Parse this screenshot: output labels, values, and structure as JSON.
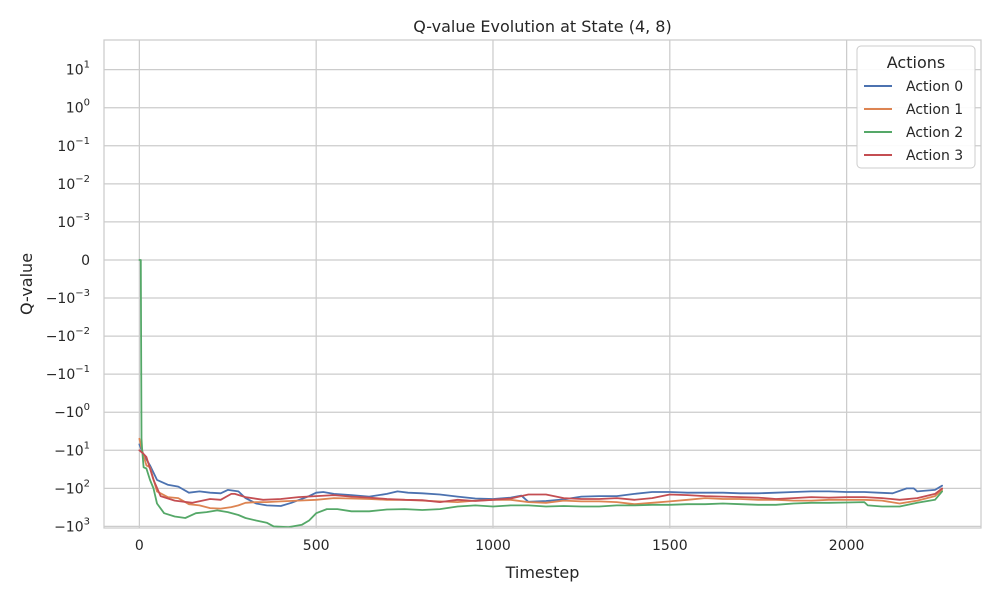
{
  "chart_data": {
    "type": "line",
    "title": "Q-value Evolution at State (4, 8)",
    "xlabel": "Timestep",
    "ylabel": "Q-value",
    "xlim": [
      -100,
      2380
    ],
    "x_ticks": [
      0,
      500,
      1000,
      1500,
      2000
    ],
    "y_scale": "symlog",
    "ylim": [
      -1100,
      60
    ],
    "y_ticks": [
      {
        "value": 10,
        "base": "10",
        "exp": "1"
      },
      {
        "value": 1,
        "base": "10",
        "exp": "0"
      },
      {
        "value": 0.1,
        "base": "10",
        "exp": "−1"
      },
      {
        "value": 0.01,
        "base": "10",
        "exp": "−2"
      },
      {
        "value": 0.001,
        "base": "10",
        "exp": "−3"
      },
      {
        "value": 0,
        "base": "0",
        "exp": ""
      },
      {
        "value": -0.001,
        "base": "−10",
        "exp": "−3"
      },
      {
        "value": -0.01,
        "base": "−10",
        "exp": "−2"
      },
      {
        "value": -0.1,
        "base": "−10",
        "exp": "−1"
      },
      {
        "value": -1,
        "base": "−10",
        "exp": "0"
      },
      {
        "value": -10,
        "base": "−10",
        "exp": "1"
      },
      {
        "value": -100,
        "base": "−10",
        "exp": "2"
      },
      {
        "value": -1000,
        "base": "−10",
        "exp": "3"
      }
    ],
    "grid": true,
    "legend_title": "Actions",
    "legend_position": "top-right",
    "series": [
      {
        "name": "Action 0",
        "color": "#4c72b0",
        "x": [
          0,
          10,
          30,
          50,
          80,
          110,
          140,
          170,
          200,
          230,
          250,
          280,
          300,
          330,
          360,
          400,
          430,
          480,
          500,
          520,
          550,
          600,
          650,
          700,
          730,
          760,
          800,
          850,
          900,
          950,
          1000,
          1050,
          1080,
          1100,
          1150,
          1200,
          1250,
          1300,
          1350,
          1400,
          1450,
          1500,
          1550,
          1600,
          1650,
          1700,
          1750,
          1800,
          1850,
          1900,
          1950,
          2000,
          2050,
          2090,
          2130,
          2170,
          2190,
          2200,
          2250,
          2270
        ],
        "y": [
          -7,
          -12,
          -25,
          -60,
          -80,
          -90,
          -130,
          -120,
          -130,
          -135,
          -110,
          -120,
          -180,
          -250,
          -280,
          -290,
          -240,
          -160,
          -130,
          -125,
          -140,
          -150,
          -165,
          -140,
          -120,
          -130,
          -135,
          -145,
          -165,
          -185,
          -190,
          -175,
          -155,
          -225,
          -215,
          -195,
          -165,
          -160,
          -160,
          -140,
          -125,
          -125,
          -130,
          -130,
          -130,
          -135,
          -135,
          -130,
          -125,
          -120,
          -120,
          -125,
          -125,
          -130,
          -135,
          -100,
          -100,
          -120,
          -110,
          -85
        ]
      },
      {
        "name": "Action 1",
        "color": "#dd8452",
        "x": [
          0,
          10,
          20,
          30,
          50,
          80,
          110,
          140,
          170,
          200,
          230,
          260,
          280,
          300,
          330,
          360,
          400,
          450,
          500,
          550,
          600,
          650,
          700,
          750,
          800,
          850,
          900,
          950,
          1000,
          1050,
          1100,
          1150,
          1200,
          1250,
          1300,
          1350,
          1400,
          1450,
          1500,
          1550,
          1600,
          1650,
          1700,
          1750,
          1800,
          1850,
          1900,
          1950,
          2000,
          2050,
          2100,
          2150,
          2200,
          2250,
          2270
        ],
        "y": [
          -5,
          -12,
          -25,
          -28,
          -120,
          -170,
          -180,
          -260,
          -280,
          -330,
          -340,
          -310,
          -280,
          -240,
          -230,
          -230,
          -220,
          -210,
          -200,
          -180,
          -185,
          -190,
          -200,
          -200,
          -210,
          -220,
          -230,
          -210,
          -200,
          -200,
          -230,
          -240,
          -210,
          -220,
          -220,
          -230,
          -260,
          -240,
          -220,
          -200,
          -180,
          -190,
          -190,
          -200,
          -200,
          -210,
          -210,
          -200,
          -200,
          -200,
          -210,
          -250,
          -210,
          -160,
          -110
        ]
      },
      {
        "name": "Action 2",
        "color": "#55a868",
        "x": [
          0,
          4,
          6,
          8,
          12,
          20,
          30,
          40,
          50,
          70,
          100,
          130,
          160,
          190,
          220,
          250,
          280,
          300,
          330,
          360,
          380,
          420,
          460,
          480,
          500,
          530,
          560,
          600,
          650,
          700,
          750,
          800,
          850,
          900,
          950,
          1000,
          1050,
          1100,
          1150,
          1200,
          1250,
          1300,
          1350,
          1400,
          1450,
          1500,
          1550,
          1600,
          1650,
          1700,
          1750,
          1800,
          1850,
          1900,
          1950,
          2000,
          2050,
          2060,
          2100,
          2150,
          2200,
          2250,
          2270
        ],
        "y": [
          0,
          0,
          -5,
          -10,
          -28,
          -30,
          -60,
          -100,
          -250,
          -450,
          -550,
          -600,
          -450,
          -420,
          -380,
          -420,
          -500,
          -600,
          -700,
          -800,
          -1000,
          -1050,
          -900,
          -700,
          -450,
          -350,
          -350,
          -400,
          -400,
          -360,
          -350,
          -370,
          -350,
          -300,
          -280,
          -300,
          -280,
          -280,
          -300,
          -290,
          -300,
          -300,
          -280,
          -280,
          -270,
          -270,
          -260,
          -260,
          -250,
          -260,
          -270,
          -270,
          -250,
          -240,
          -240,
          -235,
          -230,
          -280,
          -300,
          -300,
          -240,
          -200,
          -120
        ]
      },
      {
        "name": "Action 3",
        "color": "#c44e52",
        "x": [
          0,
          10,
          20,
          30,
          40,
          60,
          100,
          150,
          200,
          230,
          260,
          270,
          300,
          350,
          400,
          450,
          500,
          550,
          600,
          650,
          700,
          750,
          800,
          850,
          900,
          950,
          1000,
          1050,
          1100,
          1150,
          1200,
          1250,
          1300,
          1350,
          1400,
          1450,
          1500,
          1550,
          1600,
          1650,
          1700,
          1750,
          1800,
          1850,
          1900,
          1950,
          2000,
          2050,
          2100,
          2150,
          2200,
          2250,
          2270
        ],
        "y": [
          -10,
          -12,
          -15,
          -30,
          -60,
          -160,
          -210,
          -240,
          -190,
          -200,
          -140,
          -140,
          -170,
          -200,
          -190,
          -170,
          -160,
          -150,
          -165,
          -175,
          -190,
          -200,
          -205,
          -230,
          -200,
          -215,
          -200,
          -185,
          -145,
          -145,
          -180,
          -190,
          -190,
          -180,
          -200,
          -180,
          -145,
          -150,
          -160,
          -165,
          -170,
          -175,
          -190,
          -180,
          -170,
          -175,
          -170,
          -170,
          -180,
          -200,
          -180,
          -140,
          -100
        ]
      }
    ]
  }
}
